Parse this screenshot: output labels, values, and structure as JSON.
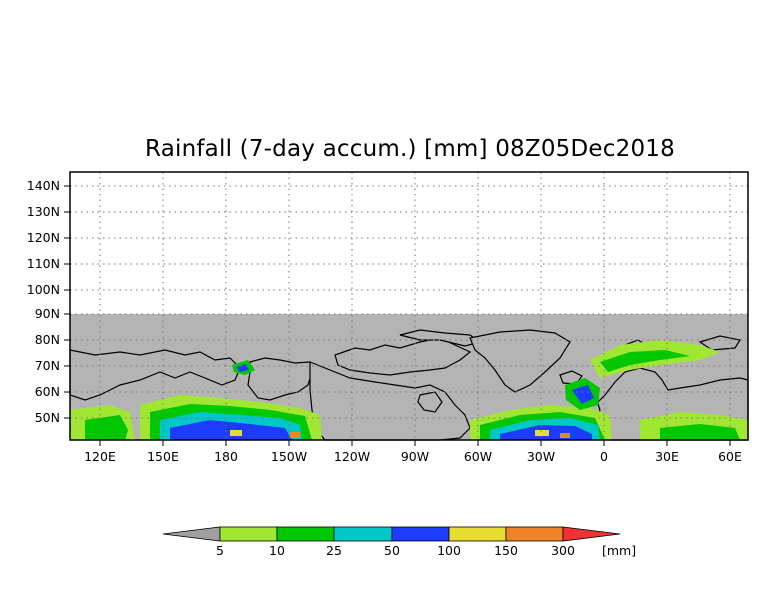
{
  "title": "Rainfall (7-day accum.) [mm] 08Z05Dec2018",
  "map": {
    "lat_labels": [
      "140N",
      "130N",
      "120N",
      "110N",
      "100N",
      "90N",
      "80N",
      "70N",
      "60N",
      "50N"
    ],
    "lon_labels": [
      "120E",
      "150E",
      "180",
      "150W",
      "120W",
      "90W",
      "60W",
      "30W",
      "0",
      "30E",
      "60E"
    ],
    "ocean_color": "#b4b4b4",
    "blank_color": "#ffffff"
  },
  "colorbar": {
    "levels": [
      "5",
      "10",
      "25",
      "50",
      "100",
      "150",
      "300"
    ],
    "unit": "[mm]",
    "colors": [
      "#a0a0a0",
      "#a0e632",
      "#00c800",
      "#00c8c8",
      "#1e3cff",
      "#e6dc32",
      "#f08228",
      "#f03232"
    ]
  }
}
